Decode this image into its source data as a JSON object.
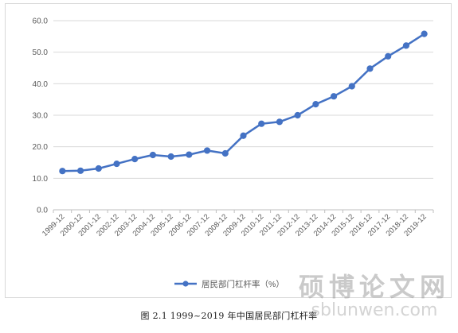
{
  "chart_data": {
    "type": "line",
    "categories": [
      "1999-12",
      "2000-12",
      "2001-12",
      "2002-12",
      "2003-12",
      "2004-12",
      "2005-12",
      "2006-12",
      "2007-12",
      "2008-12",
      "2009-12",
      "2010-12",
      "2011-12",
      "2012-12",
      "2013-12",
      "2014-12",
      "2015-12",
      "2016-12",
      "2017-12",
      "2018-12",
      "2019-12"
    ],
    "series": [
      {
        "name": "居民部门杠杆率（%）",
        "color": "#4472c4",
        "values": [
          12.3,
          12.4,
          13.1,
          14.6,
          16.1,
          17.4,
          16.9,
          17.5,
          18.8,
          17.9,
          23.5,
          27.3,
          27.9,
          30.0,
          33.5,
          36.0,
          39.2,
          44.8,
          48.7,
          52.1,
          55.8
        ]
      }
    ],
    "yticks": [
      "0.0",
      "10.0",
      "20.0",
      "30.0",
      "40.0",
      "50.0",
      "60.0"
    ],
    "ylim": [
      0,
      60
    ],
    "grid": true,
    "legend_position": "bottom-center"
  },
  "caption": "图 2.1    1999~2019 年中国居民部门杠杆率",
  "watermark": {
    "cn": "硕博论文网",
    "url": "sblunwen.com"
  }
}
